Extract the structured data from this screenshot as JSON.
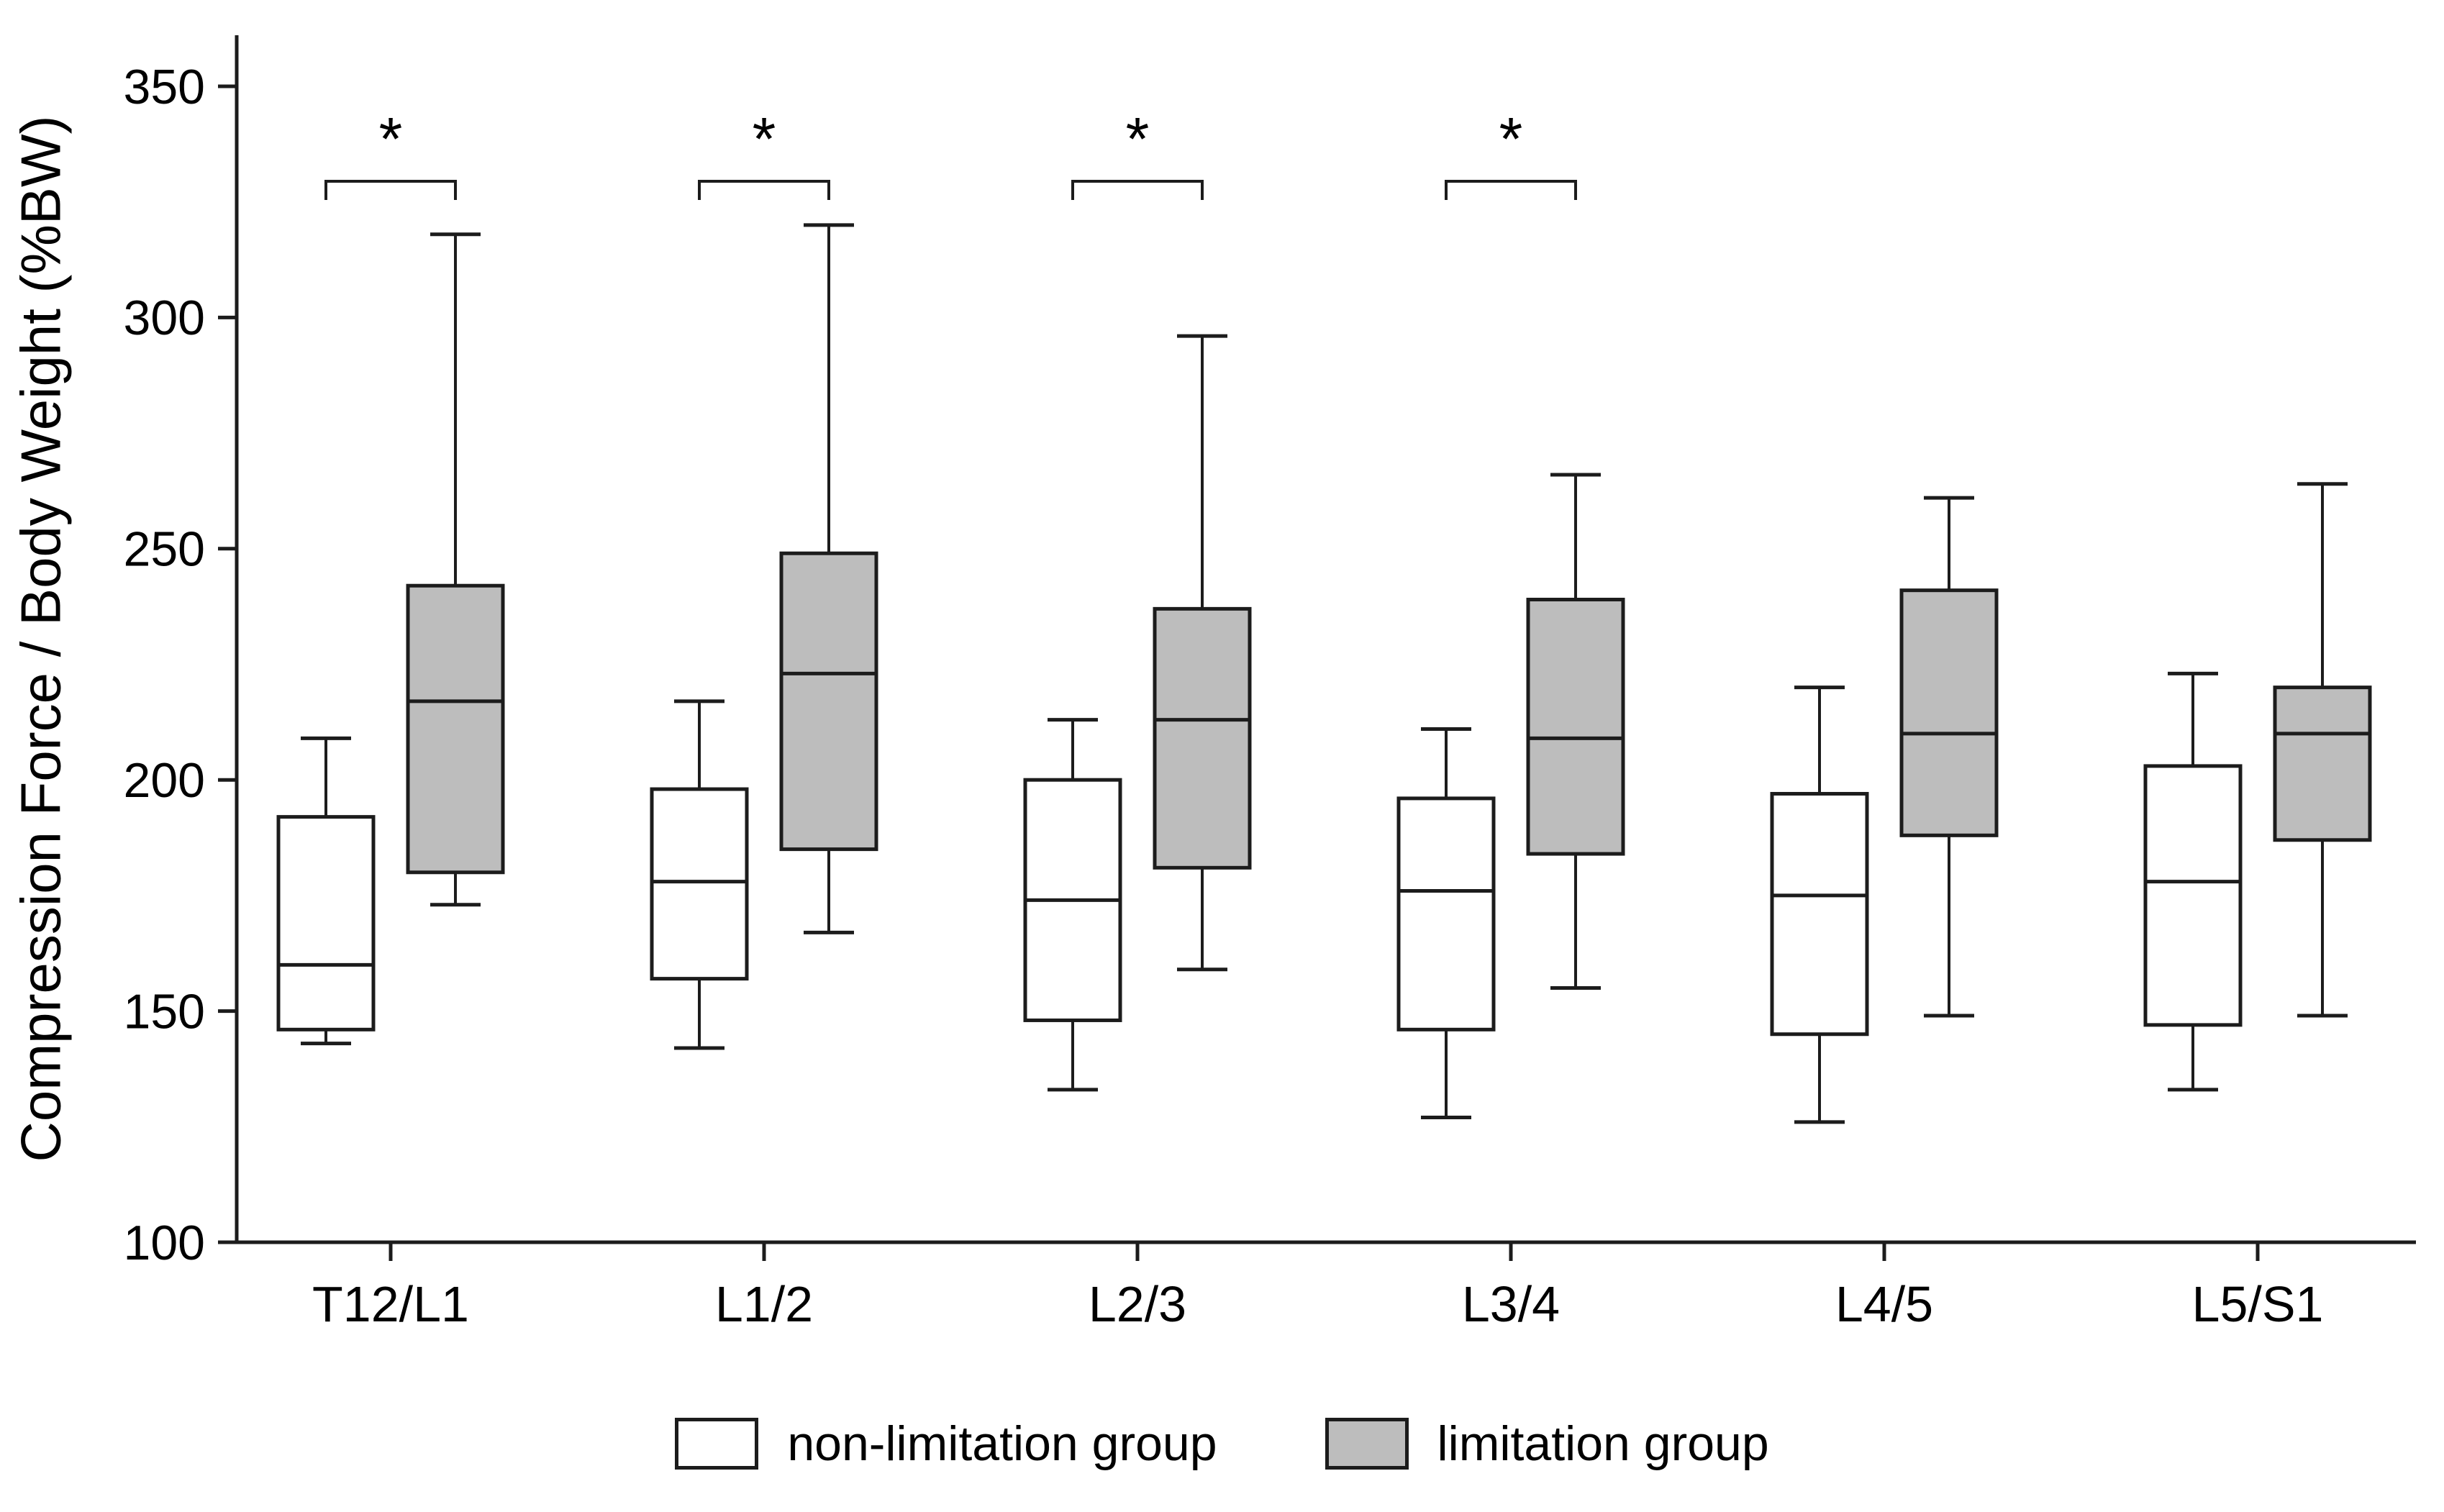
{
  "figure": {
    "background": "#ffffff",
    "line_color": "#1c1c1c",
    "box_fill_nonlimitation": "#ffffff",
    "box_fill_limitation": "#bdbdbd"
  },
  "legend": {
    "items": [
      {
        "label": "non-limitation group",
        "fill": "#ffffff"
      },
      {
        "label": "limitation group",
        "fill": "#bdbdbd"
      }
    ]
  },
  "chart_data": {
    "type": "boxplot",
    "title": "",
    "xlabel": "",
    "ylabel": "Compression Force / Body Weight (%BW)",
    "ylim": [
      100,
      360
    ],
    "yticks": [
      100,
      150,
      200,
      250,
      300,
      350
    ],
    "grid": "off",
    "legend_position": "bottom",
    "categories": [
      "T12/L1",
      "L1/2",
      "L2/3",
      "L3/4",
      "L4/5",
      "L5/S1"
    ],
    "series": [
      {
        "name": "non-limitation group",
        "fill": "#ffffff",
        "boxes": [
          {
            "category": "T12/L1",
            "min": 143,
            "q1": 146,
            "median": 160,
            "q3": 192,
            "max": 209
          },
          {
            "category": "L1/2",
            "min": 142,
            "q1": 157,
            "median": 178,
            "q3": 198,
            "max": 217
          },
          {
            "category": "L2/3",
            "min": 133,
            "q1": 148,
            "median": 174,
            "q3": 200,
            "max": 213
          },
          {
            "category": "L3/4",
            "min": 127,
            "q1": 146,
            "median": 176,
            "q3": 196,
            "max": 211
          },
          {
            "category": "L4/5",
            "min": 126,
            "q1": 145,
            "median": 175,
            "q3": 197,
            "max": 220
          },
          {
            "category": "L5/S1",
            "min": 133,
            "q1": 147,
            "median": 178,
            "q3": 203,
            "max": 223
          }
        ]
      },
      {
        "name": "limitation group",
        "fill": "#bdbdbd",
        "boxes": [
          {
            "category": "T12/L1",
            "min": 173,
            "q1": 180,
            "median": 217,
            "q3": 242,
            "max": 318
          },
          {
            "category": "L1/2",
            "min": 167,
            "q1": 185,
            "median": 223,
            "q3": 249,
            "max": 320
          },
          {
            "category": "L2/3",
            "min": 159,
            "q1": 181,
            "median": 213,
            "q3": 237,
            "max": 296
          },
          {
            "category": "L3/4",
            "min": 155,
            "q1": 184,
            "median": 209,
            "q3": 239,
            "max": 266
          },
          {
            "category": "L4/5",
            "min": 149,
            "q1": 188,
            "median": 210,
            "q3": 241,
            "max": 261
          },
          {
            "category": "L5/S1",
            "min": 149,
            "q1": 187,
            "median": 210,
            "q3": 220,
            "max": 264
          }
        ]
      }
    ],
    "significance": [
      {
        "category": "T12/L1",
        "label": "*"
      },
      {
        "category": "L1/2",
        "label": "*"
      },
      {
        "category": "L2/3",
        "label": "*"
      },
      {
        "category": "L3/4",
        "label": "*"
      }
    ]
  }
}
